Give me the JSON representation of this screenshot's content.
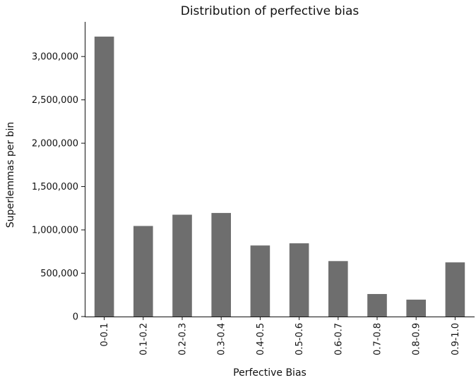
{
  "chart_data": {
    "type": "bar",
    "title": "Distribution of perfective bias",
    "xlabel": "Perfective Bias",
    "ylabel": "Superlemmas per bin",
    "categories": [
      "0-0.1",
      "0.1-0.2",
      "0.2-0.3",
      "0.3-0.4",
      "0.4-0.5",
      "0.5-0.6",
      "0.6-0.7",
      "0.7-0.8",
      "0.8-0.9",
      "0.9-1.0"
    ],
    "values": [
      3230000,
      1045000,
      1175000,
      1195000,
      820000,
      845000,
      640000,
      260000,
      195000,
      625000
    ],
    "ylim": [
      0,
      3400000
    ],
    "yticks": [
      0,
      500000,
      1000000,
      1500000,
      2000000,
      2500000,
      3000000
    ],
    "ytick_labels": [
      "0",
      "500,000",
      "1,000,000",
      "1,500,000",
      "2,000,000",
      "2,500,000",
      "3,000,000"
    ],
    "bar_color": "#6e6e6e",
    "grid": false,
    "legend": "none"
  }
}
